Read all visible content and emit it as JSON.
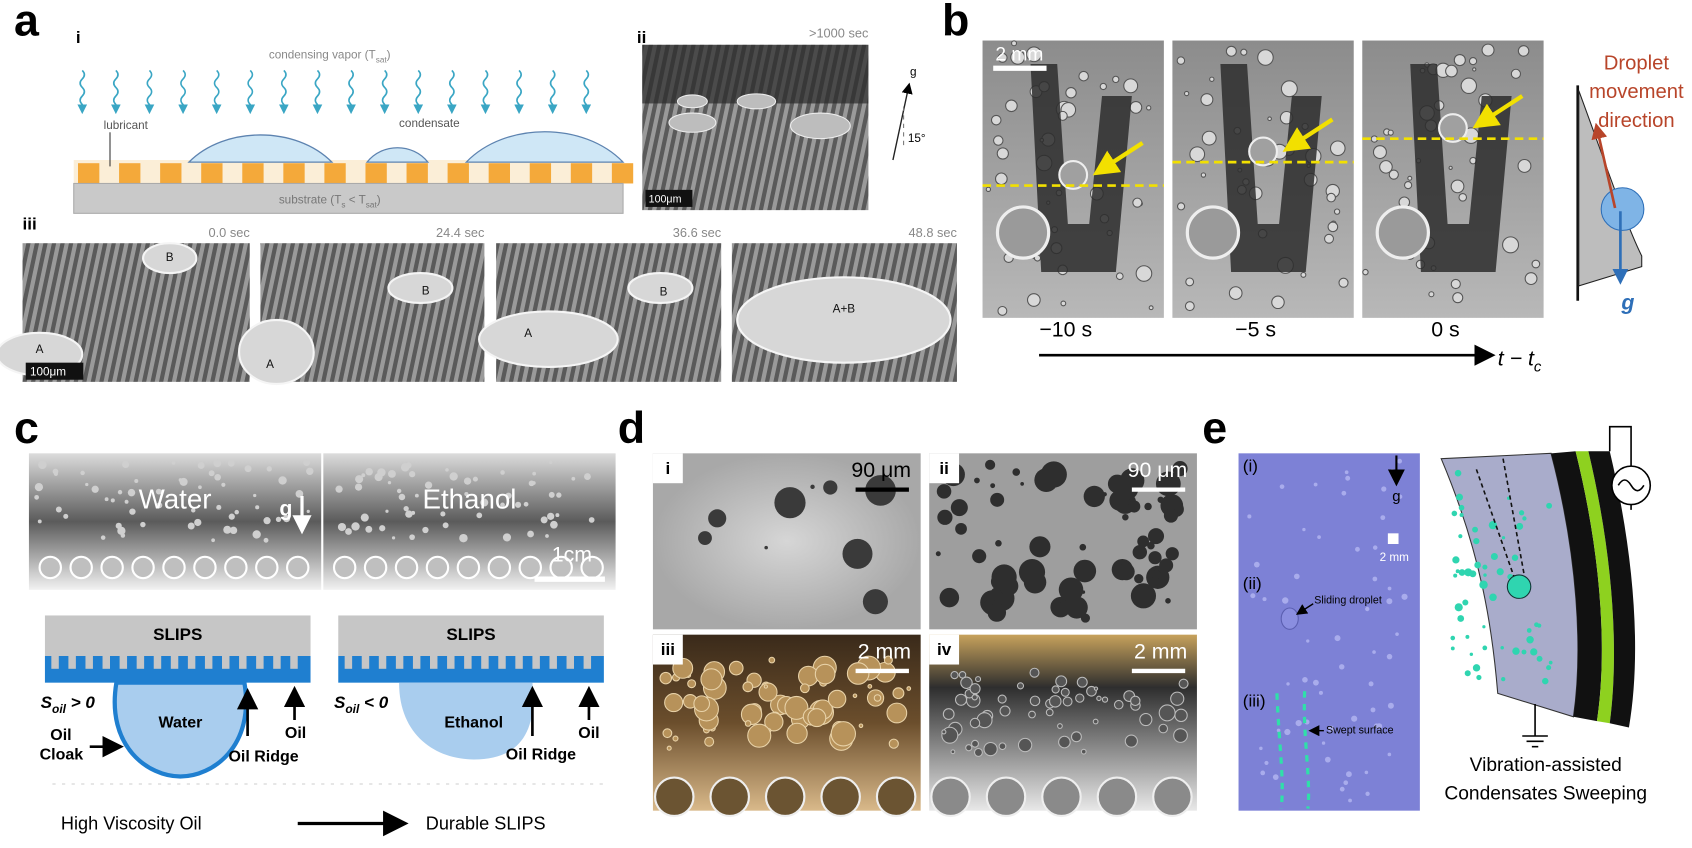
{
  "a": {
    "label": "a",
    "i": {
      "label": "i",
      "vapor": [
        {
          "text": "condensing vapor (T"
        },
        {
          "text": "sat",
          "sub": true
        },
        {
          "text": ")"
        }
      ],
      "lubricant": "lubricant",
      "condensate": "condensate",
      "substrate": [
        {
          "text": "substrate (T"
        },
        {
          "text": "s",
          "sub": true
        },
        {
          "text": " < T"
        },
        {
          "text": "sat",
          "sub": true
        },
        {
          "text": ")"
        }
      ]
    },
    "ii": {
      "label": "ii",
      "time": ">1000 sec",
      "gravity": "g",
      "angle": "15°",
      "scale": "100μm"
    },
    "iii": {
      "label": "iii",
      "frames": [
        {
          "time": "0.0 sec",
          "droplets": [
            "B",
            "A"
          ],
          "scale": "100μm"
        },
        {
          "time": "24.4 sec",
          "droplets": [
            "B",
            "A"
          ]
        },
        {
          "time": "36.6 sec",
          "droplets": [
            "B",
            "A"
          ]
        },
        {
          "time": "48.8 sec",
          "droplets": [
            "A+B"
          ]
        }
      ]
    }
  },
  "b": {
    "label": "b",
    "scale": "2 mm",
    "times": [
      "−10 s",
      "−5 s",
      "0 s"
    ],
    "axis": [
      {
        "text": "t − t"
      },
      {
        "text": "c",
        "sub": true
      }
    ],
    "direction": [
      "Droplet",
      "movement",
      "direction"
    ],
    "gravity": "g"
  },
  "c": {
    "label": "c",
    "photos": [
      "Water",
      "Ethanol"
    ],
    "gravity": "g",
    "scale": "1cm",
    "schemes": [
      {
        "surface": "SLIPS",
        "spreading": [
          {
            "text": "S"
          },
          {
            "text": "oil",
            "sub": true
          },
          {
            "text": " > 0"
          }
        ],
        "liquid": "Water",
        "cloak": [
          "Oil",
          "Cloak"
        ],
        "ridge": "Oil Ridge",
        "oil": "Oil"
      },
      {
        "surface": "SLIPS",
        "spreading": [
          {
            "text": "S"
          },
          {
            "text": "oil",
            "sub": true
          },
          {
            "text": " < 0"
          }
        ],
        "liquid": "Ethanol",
        "ridge": "Oil Ridge",
        "oil": "Oil"
      }
    ],
    "process": [
      "High Viscosity Oil",
      "Durable SLIPS"
    ]
  },
  "d": {
    "label": "d",
    "panels": [
      {
        "label": "i",
        "scale": "90 μm"
      },
      {
        "label": "ii",
        "scale": "90 μm"
      },
      {
        "label": "iii",
        "scale": "2 mm"
      },
      {
        "label": "iv",
        "scale": "2 mm"
      }
    ]
  },
  "e": {
    "label": "e",
    "steps": [
      "(i)",
      "(ii)",
      "(iii)"
    ],
    "gravity": "g",
    "scale": "2 mm",
    "notes": [
      "Sliding droplet",
      "Swept surface"
    ],
    "caption": [
      "Vibration-assisted",
      "Condensates Sweeping"
    ]
  }
}
